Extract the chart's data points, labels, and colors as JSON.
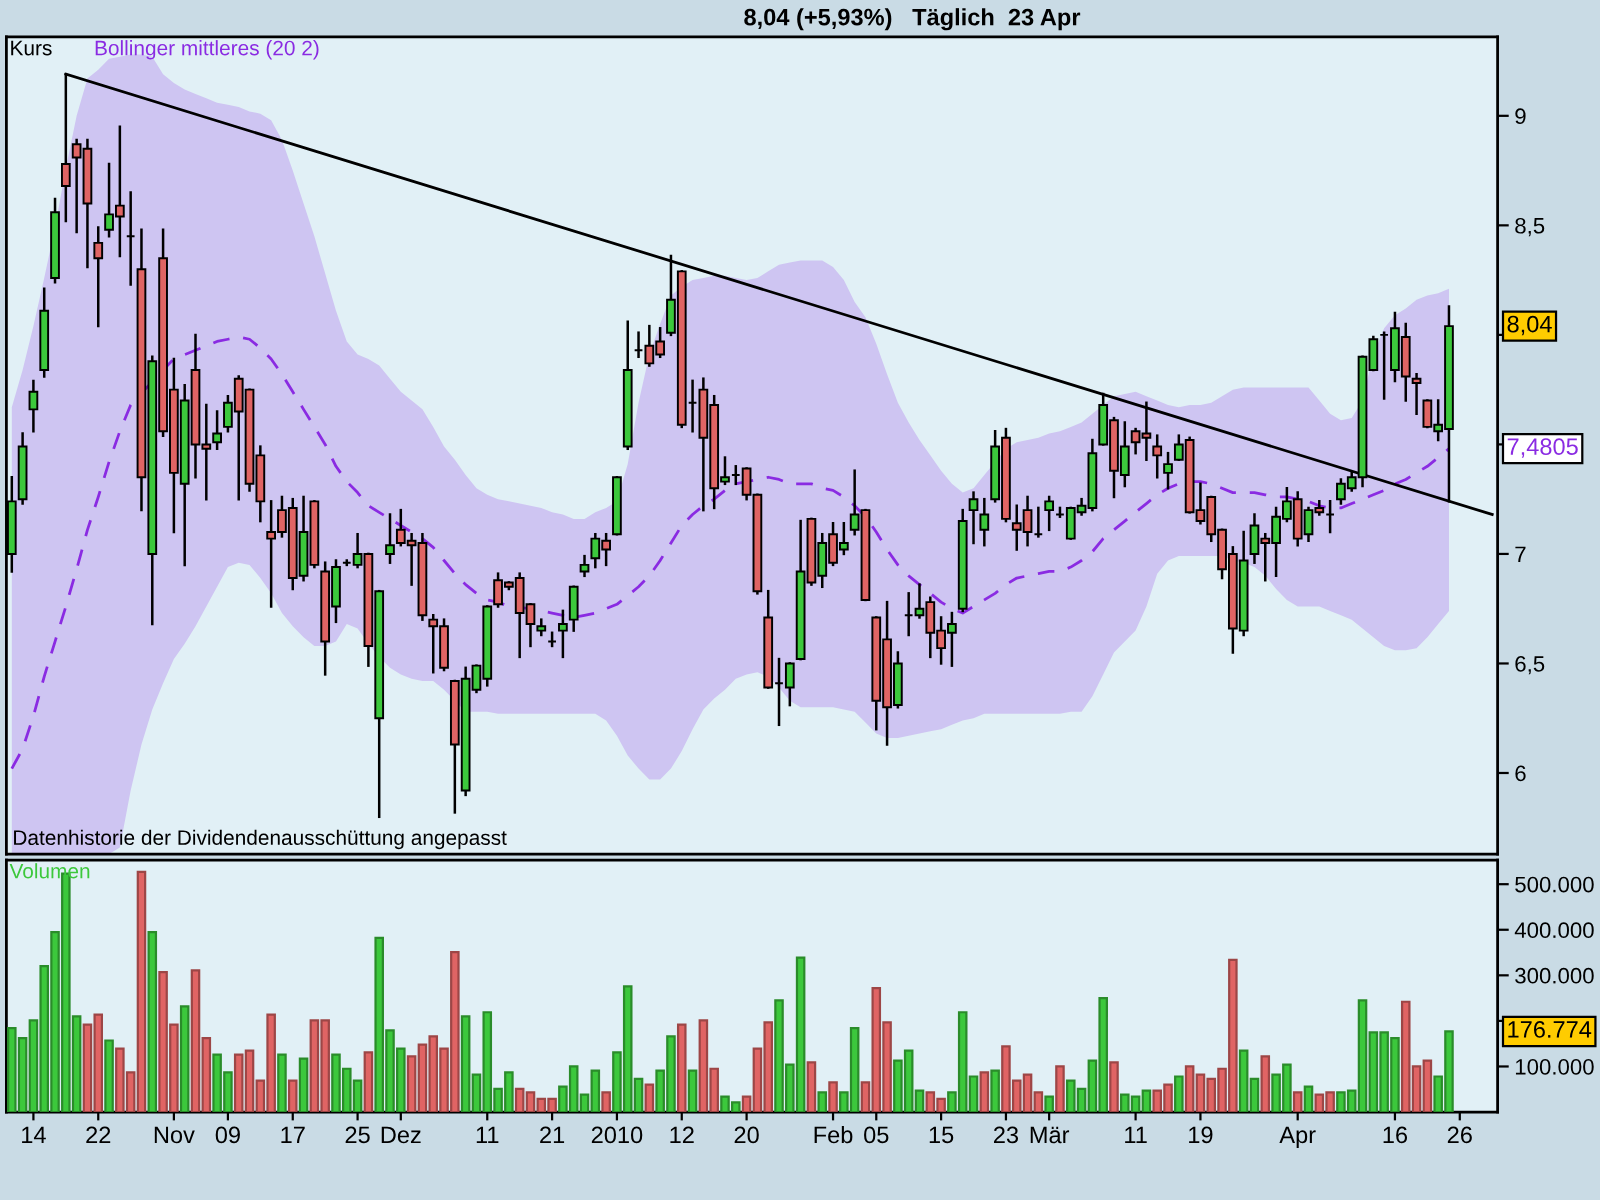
{
  "chart_data": [
    {
      "type": "candlestick",
      "title": "8,04 (+5,93%)   Täglich  23 Apr",
      "categories": [
        null,
        null,
        null,
        null,
        null,
        null,
        null,
        null,
        null,
        null,
        null,
        null,
        null,
        null,
        null,
        null,
        null,
        null,
        null,
        null,
        null,
        null,
        null,
        null,
        null,
        null,
        null,
        null,
        null,
        null,
        null,
        null,
        null,
        null,
        null,
        null,
        null,
        null,
        null,
        null,
        null,
        null,
        null,
        null,
        null,
        null,
        null,
        null,
        null,
        null,
        null,
        null,
        null,
        null,
        null,
        null,
        null,
        null,
        null,
        null,
        null,
        null,
        null,
        null,
        null,
        null,
        null,
        null,
        null,
        null,
        null,
        null,
        null,
        null,
        null,
        null,
        null,
        null,
        null,
        null,
        null,
        null,
        null,
        null,
        null,
        null,
        null,
        null,
        null,
        null,
        null,
        null,
        null,
        null,
        null,
        null,
        null,
        null,
        null,
        null,
        null,
        null,
        null,
        null,
        null,
        null,
        null,
        null,
        null,
        null,
        null,
        null,
        null,
        null,
        null,
        null,
        null,
        null,
        null,
        null,
        null,
        null,
        null,
        null,
        null,
        null,
        null,
        null,
        null,
        null,
        null,
        null,
        null,
        null,
        null,
        null,
        null,
        null
      ],
      "series": [
        {
          "name": "Kurs",
          "type": "candlestick",
          "color": "#000000",
          "colors": [
            "#3cc83c",
            "#3cc83c",
            "#3cc83c",
            "#3cc83c",
            "#3cc83c",
            "#e06464",
            "#e06464",
            "#e06464",
            "#e06464",
            "#3cc83c",
            "#e06464",
            "#000000",
            "#e06464",
            "#3cc83c",
            "#e06464",
            "#e06464",
            "#3cc83c",
            "#e06464",
            "#e06464",
            "#3cc83c",
            "#3cc83c",
            "#e06464",
            "#e06464",
            "#e06464",
            "#e06464",
            "#e06464",
            "#e06464",
            "#3cc83c",
            "#e06464",
            "#e06464",
            "#3cc83c",
            "#000000",
            "#3cc83c",
            "#e06464",
            "#3cc83c",
            "#3cc83c",
            "#e06464",
            "#e06464",
            "#e06464",
            "#e06464",
            "#e06464",
            "#e06464",
            "#3cc83c",
            "#3cc83c",
            "#3cc83c",
            "#e06464",
            "#e06464",
            "#e06464",
            "#e06464",
            "#3cc83c",
            "#000000",
            "#3cc83c",
            "#3cc83c",
            "#3cc83c",
            "#3cc83c",
            "#e06464",
            "#3cc83c",
            "#3cc83c",
            "#000000",
            "#e06464",
            "#e06464",
            "#3cc83c",
            "#e06464",
            "#000000",
            "#e06464",
            "#e06464",
            "#3cc83c",
            "#000000",
            "#e06464",
            "#e06464",
            "#e06464",
            "#000000",
            "#3cc83c",
            "#3cc83c",
            "#e06464",
            "#3cc83c",
            "#e06464",
            "#3cc83c",
            "#3cc83c",
            "#e06464",
            "#e06464",
            "#e06464",
            "#3cc83c",
            "#000000",
            "#3cc83c",
            "#e06464",
            "#e06464",
            "#3cc83c",
            "#3cc83c",
            "#3cc83c",
            "#3cc83c",
            "#3cc83c",
            "#e06464",
            "#e06464",
            "#e06464",
            "#000000",
            "#3cc83c",
            "#000000",
            "#3cc83c",
            "#3cc83c",
            "#3cc83c",
            "#3cc83c",
            "#e06464",
            "#3cc83c",
            "#e06464",
            "#e06464",
            "#e06464",
            "#3cc83c",
            "#3cc83c",
            "#e06464",
            "#e06464",
            "#e06464",
            "#e06464",
            "#e06464",
            "#3cc83c",
            "#3cc83c",
            "#e06464",
            "#3cc83c",
            "#3cc83c",
            "#e06464",
            "#3cc83c",
            "#e06464",
            "#000000",
            "#3cc83c",
            "#3cc83c",
            "#3cc83c",
            "#3cc83c",
            "#000000",
            "#3cc83c",
            "#e06464",
            "#e06464",
            "#e06464",
            "#3cc83c",
            "#3cc83c",
            null,
            null,
            null,
            null
          ],
          "ohlc": [
            [
              7.0,
              7.35,
              6.92,
              7.24
            ],
            [
              7.25,
              7.55,
              7.23,
              7.49
            ],
            [
              7.66,
              7.79,
              7.56,
              7.74
            ],
            [
              7.84,
              8.21,
              7.81,
              8.11
            ],
            [
              8.26,
              8.62,
              8.24,
              8.56
            ],
            [
              8.78,
              9.19,
              8.52,
              8.68
            ],
            [
              8.87,
              8.89,
              8.47,
              8.81
            ],
            [
              8.85,
              8.89,
              8.31,
              8.6
            ],
            [
              8.42,
              8.49,
              8.04,
              8.35
            ],
            [
              8.48,
              8.78,
              8.45,
              8.55
            ],
            [
              8.59,
              8.95,
              8.36,
              8.54
            ],
            [
              8.45,
              8.65,
              8.23,
              8.45
            ],
            [
              8.3,
              8.48,
              7.2,
              7.35
            ],
            [
              7.0,
              7.9,
              6.68,
              7.88
            ],
            [
              8.35,
              8.48,
              7.54,
              7.56
            ],
            [
              7.75,
              7.89,
              7.1,
              7.37
            ],
            [
              7.32,
              7.77,
              6.95,
              7.7
            ],
            [
              7.84,
              8.0,
              7.35,
              7.5
            ],
            [
              7.5,
              7.68,
              7.25,
              7.48
            ],
            [
              7.51,
              7.65,
              7.48,
              7.55
            ],
            [
              7.58,
              7.72,
              7.56,
              7.69
            ],
            [
              7.8,
              7.81,
              7.25,
              7.65
            ],
            [
              7.75,
              7.75,
              7.29,
              7.32
            ],
            [
              7.45,
              7.49,
              7.15,
              7.24
            ],
            [
              7.1,
              7.24,
              6.76,
              7.07
            ],
            [
              7.2,
              7.26,
              7.08,
              7.1
            ],
            [
              7.21,
              7.25,
              6.84,
              6.89
            ],
            [
              6.9,
              7.26,
              6.88,
              7.1
            ],
            [
              7.24,
              7.24,
              6.94,
              6.95
            ],
            [
              6.92,
              6.96,
              6.45,
              6.6
            ],
            [
              6.76,
              6.97,
              6.69,
              6.94
            ],
            [
              6.96,
              6.97,
              6.95,
              6.96
            ],
            [
              6.95,
              7.09,
              6.94,
              7.0
            ],
            [
              7.0,
              7.0,
              6.49,
              6.58
            ],
            [
              6.25,
              6.83,
              5.8,
              6.83
            ],
            [
              7.0,
              7.18,
              6.96,
              7.04
            ],
            [
              7.11,
              7.2,
              7.04,
              7.05
            ],
            [
              7.06,
              7.09,
              6.86,
              7.04
            ],
            [
              7.05,
              7.09,
              6.7,
              6.72
            ],
            [
              6.7,
              6.72,
              6.46,
              6.67
            ],
            [
              6.67,
              6.7,
              6.47,
              6.48
            ],
            [
              6.42,
              6.42,
              5.82,
              6.13
            ],
            [
              5.92,
              6.48,
              5.9,
              6.43
            ],
            [
              6.38,
              6.49,
              6.37,
              6.49
            ],
            [
              6.43,
              6.76,
              6.4,
              6.76
            ],
            [
              6.88,
              6.91,
              6.76,
              6.77
            ],
            [
              6.87,
              6.87,
              6.84,
              6.85
            ],
            [
              6.89,
              6.91,
              6.53,
              6.73
            ],
            [
              6.77,
              6.77,
              6.58,
              6.68
            ],
            [
              6.65,
              6.7,
              6.63,
              6.67
            ],
            [
              6.6,
              6.64,
              6.58,
              6.6
            ],
            [
              6.65,
              6.74,
              6.53,
              6.68
            ],
            [
              6.7,
              6.85,
              6.65,
              6.85
            ],
            [
              6.92,
              6.99,
              6.9,
              6.95
            ],
            [
              6.98,
              7.09,
              6.94,
              7.07
            ],
            [
              7.06,
              7.09,
              6.95,
              7.02
            ],
            [
              7.09,
              7.35,
              7.09,
              7.35
            ],
            [
              7.49,
              8.06,
              7.48,
              7.84
            ],
            [
              7.93,
              8.01,
              7.9,
              7.93
            ],
            [
              7.95,
              8.04,
              7.86,
              7.87
            ],
            [
              7.97,
              8.03,
              7.9,
              7.91
            ],
            [
              8.01,
              8.36,
              8.0,
              8.16
            ],
            [
              8.29,
              8.29,
              7.58,
              7.59
            ],
            [
              7.69,
              7.79,
              7.56,
              7.69
            ],
            [
              7.75,
              7.8,
              7.2,
              7.53
            ],
            [
              7.68,
              7.72,
              7.21,
              7.3
            ],
            [
              7.33,
              7.44,
              7.32,
              7.35
            ],
            [
              7.36,
              7.4,
              7.32,
              7.36
            ],
            [
              7.39,
              7.39,
              7.25,
              7.27
            ],
            [
              7.27,
              7.27,
              6.82,
              6.83
            ],
            [
              6.71,
              6.83,
              6.39,
              6.39
            ],
            [
              6.41,
              6.52,
              6.22,
              6.41
            ],
            [
              6.39,
              6.5,
              6.31,
              6.5
            ],
            [
              6.52,
              7.15,
              6.52,
              6.92
            ],
            [
              7.16,
              7.16,
              6.86,
              6.87
            ],
            [
              6.9,
              7.09,
              6.85,
              7.05
            ],
            [
              7.09,
              7.14,
              6.95,
              6.96
            ],
            [
              7.02,
              7.14,
              7.0,
              7.05
            ],
            [
              7.11,
              7.38,
              7.09,
              7.18
            ],
            [
              7.2,
              7.2,
              6.79,
              6.79
            ],
            [
              6.71,
              6.71,
              6.2,
              6.33
            ],
            [
              6.61,
              6.78,
              6.13,
              6.3
            ],
            [
              6.31,
              6.55,
              6.3,
              6.5
            ],
            [
              6.72,
              6.82,
              6.63,
              6.72
            ],
            [
              6.72,
              6.86,
              6.71,
              6.75
            ],
            [
              6.78,
              6.8,
              6.53,
              6.64
            ],
            [
              6.65,
              6.71,
              6.5,
              6.57
            ],
            [
              6.64,
              6.73,
              6.49,
              6.68
            ],
            [
              6.75,
              7.2,
              6.74,
              7.15
            ],
            [
              7.2,
              7.28,
              7.05,
              7.25
            ],
            [
              7.11,
              7.25,
              7.04,
              7.18
            ],
            [
              7.25,
              7.56,
              7.24,
              7.49
            ],
            [
              7.53,
              7.57,
              7.15,
              7.16
            ],
            [
              7.14,
              7.22,
              7.02,
              7.11
            ],
            [
              7.2,
              7.26,
              7.04,
              7.1
            ],
            [
              7.09,
              7.21,
              7.08,
              7.09
            ],
            [
              7.2,
              7.26,
              7.11,
              7.24
            ],
            [
              7.18,
              7.21,
              7.17,
              7.18
            ],
            [
              7.07,
              7.21,
              7.07,
              7.21
            ],
            [
              7.19,
              7.25,
              7.18,
              7.22
            ],
            [
              7.21,
              7.52,
              7.2,
              7.46
            ],
            [
              7.5,
              7.73,
              7.5,
              7.68
            ],
            [
              7.61,
              7.62,
              7.26,
              7.38
            ],
            [
              7.36,
              7.6,
              7.31,
              7.49
            ],
            [
              7.56,
              7.57,
              7.46,
              7.51
            ],
            [
              7.55,
              7.69,
              7.43,
              7.53
            ],
            [
              7.49,
              7.54,
              7.35,
              7.45
            ],
            [
              7.37,
              7.46,
              7.3,
              7.41
            ],
            [
              7.43,
              7.54,
              7.43,
              7.5
            ],
            [
              7.52,
              7.53,
              7.19,
              7.19
            ],
            [
              7.2,
              7.32,
              7.14,
              7.15
            ],
            [
              7.26,
              7.26,
              7.06,
              7.09
            ],
            [
              7.11,
              7.11,
              6.89,
              6.93
            ],
            [
              7.0,
              7.03,
              6.55,
              6.66
            ],
            [
              6.65,
              7.1,
              6.63,
              6.97
            ],
            [
              7.0,
              7.18,
              6.96,
              7.13
            ],
            [
              7.07,
              7.09,
              6.88,
              7.05
            ],
            [
              7.05,
              7.21,
              6.9,
              7.17
            ],
            [
              7.16,
              7.3,
              7.15,
              7.24
            ],
            [
              7.25,
              7.28,
              7.04,
              7.07
            ],
            [
              7.09,
              7.21,
              7.06,
              7.2
            ],
            [
              7.21,
              7.24,
              7.18,
              7.19
            ],
            [
              7.18,
              7.24,
              7.1,
              7.18
            ],
            [
              7.25,
              7.34,
              7.23,
              7.32
            ],
            [
              7.3,
              7.37,
              7.29,
              7.35
            ],
            [
              7.35,
              7.9,
              7.31,
              7.9
            ],
            [
              7.84,
              7.99,
              7.84,
              7.98
            ],
            [
              8.0,
              8.01,
              7.71,
              8.0
            ],
            [
              7.84,
              8.1,
              7.79,
              8.03
            ],
            [
              7.99,
              8.05,
              7.7,
              7.81
            ],
            [
              7.8,
              7.82,
              7.64,
              7.78
            ],
            [
              7.7,
              7.7,
              7.58,
              7.58
            ],
            [
              7.56,
              7.7,
              7.52,
              7.59
            ],
            [
              7.57,
              8.13,
              7.24,
              8.04
            ],
            null,
            null,
            null,
            null
          ]
        },
        {
          "name": "Bollinger mittleres (20 2)",
          "type": "line",
          "color": "#8a2be2",
          "line_style": "dashed",
          "values": [
            6.02,
            6.11,
            6.26,
            6.44,
            6.6,
            6.76,
            6.93,
            7.11,
            7.26,
            7.42,
            7.56,
            7.68,
            null,
            null,
            7.84,
            7.89,
            7.91,
            7.93,
            7.95,
            7.97,
            7.98,
            7.99,
            7.98,
            7.94,
            7.89,
            7.82,
            7.74,
            7.66,
            7.58,
            7.5,
            7.4,
            7.33,
            7.28,
            7.22,
            7.19,
            7.16,
            7.13,
            7.1,
            7.07,
            7.03,
            6.97,
            6.91,
            6.86,
            6.82,
            6.79,
            6.78,
            6.76,
            null,
            6.75,
            6.74,
            6.73,
            6.72,
            6.71,
            6.72,
            6.73,
            6.75,
            6.77,
            6.81,
            6.85,
            6.9,
            6.97,
            7.05,
            7.13,
            7.18,
            7.22,
            7.25,
            7.29,
            7.32,
            7.33,
            7.34,
            7.35,
            7.34,
            7.32,
            7.32,
            7.32,
            7.3,
            7.29,
            7.26,
            7.22,
            7.17,
            7.1,
            7.02,
            6.95,
            6.9,
            6.86,
            6.82,
            6.78,
            6.75,
            6.73,
            6.76,
            6.79,
            6.82,
            6.86,
            6.89,
            6.9,
            6.91,
            6.92,
            6.92,
            6.94,
            6.97,
            7.01,
            7.07,
            7.11,
            7.15,
            7.19,
            7.23,
            7.27,
            7.3,
            7.32,
            7.33,
            7.33,
            7.32,
            7.3,
            7.28,
            7.28,
            7.28,
            7.27,
            7.26,
            7.26,
            7.25,
            7.24,
            7.22,
            7.21,
            7.21,
            7.23,
            7.25,
            7.27,
            7.29,
            7.32,
            7.34,
            7.37,
            7.4,
            7.44,
            7.4805,
            null,
            null,
            null,
            null
          ],
          "lower": [
            5.63,
            5.63,
            5.63,
            5.63,
            5.63,
            5.63,
            5.63,
            5.63,
            5.63,
            5.63,
            5.66,
            5.92,
            6.13,
            6.29,
            6.41,
            6.52,
            6.59,
            6.67,
            6.76,
            6.85,
            6.94,
            6.96,
            6.95,
            6.89,
            6.82,
            6.73,
            6.67,
            6.62,
            6.58,
            6.58,
            6.6,
            6.68,
            6.66,
            6.59,
            6.53,
            6.48,
            6.45,
            6.43,
            6.42,
            6.42,
            6.38,
            6.33,
            6.28,
            6.28,
            6.28,
            6.27,
            6.27,
            6.27,
            6.27,
            6.27,
            6.27,
            6.27,
            6.27,
            6.27,
            6.27,
            6.24,
            6.17,
            6.08,
            6.02,
            5.97,
            5.97,
            6.02,
            6.1,
            6.2,
            6.29,
            6.34,
            6.38,
            6.43,
            6.45,
            6.46,
            6.44,
            6.39,
            6.33,
            6.3,
            6.3,
            6.3,
            6.3,
            6.29,
            6.28,
            6.23,
            6.18,
            6.16,
            6.16,
            6.17,
            6.18,
            6.19,
            6.2,
            6.22,
            6.24,
            6.25,
            6.27,
            6.27,
            6.27,
            6.27,
            6.27,
            6.27,
            6.27,
            6.27,
            6.28,
            6.28,
            6.35,
            6.45,
            6.55,
            6.6,
            6.65,
            6.76,
            6.91,
            6.97,
            6.99,
            6.99,
            6.99,
            6.99,
            6.99,
            6.97,
            6.96,
            6.94,
            6.9,
            6.84,
            6.79,
            6.76,
            6.76,
            6.76,
            6.74,
            6.72,
            6.7,
            6.66,
            6.62,
            6.58,
            6.56,
            6.56,
            6.57,
            6.62,
            6.68,
            6.74,
            null,
            null,
            null,
            null
          ],
          "upper": [
            7.67,
            7.84,
            8.04,
            8.26,
            8.49,
            8.76,
            9.0,
            9.17,
            9.21,
            9.26,
            9.27,
            9.28,
            9.28,
            9.27,
            9.19,
            9.15,
            9.12,
            9.1,
            9.08,
            9.06,
            9.05,
            9.04,
            9.02,
            9.01,
            8.98,
            8.89,
            8.75,
            8.6,
            8.45,
            8.28,
            8.11,
            7.97,
            7.91,
            7.89,
            7.86,
            7.8,
            7.74,
            7.7,
            7.66,
            7.58,
            7.49,
            7.43,
            7.36,
            7.3,
            7.27,
            7.25,
            7.24,
            7.23,
            7.22,
            7.21,
            7.19,
            7.18,
            7.16,
            7.16,
            7.19,
            7.21,
            7.24,
            7.41,
            7.69,
            7.91,
            8.05,
            8.18,
            8.22,
            8.25,
            8.26,
            8.27,
            8.27,
            8.26,
            8.25,
            8.26,
            8.29,
            8.32,
            8.33,
            8.34,
            8.34,
            8.34,
            8.31,
            8.25,
            8.15,
            8.08,
            7.96,
            7.82,
            7.69,
            7.6,
            7.52,
            7.45,
            7.38,
            7.32,
            7.28,
            7.3,
            7.36,
            7.42,
            7.48,
            7.51,
            7.52,
            7.53,
            7.55,
            7.56,
            7.58,
            7.6,
            7.64,
            7.68,
            7.72,
            7.73,
            7.74,
            7.72,
            7.7,
            7.68,
            7.67,
            7.68,
            7.68,
            7.69,
            7.72,
            7.75,
            7.76,
            7.76,
            7.76,
            7.76,
            7.76,
            7.76,
            7.76,
            7.7,
            7.64,
            7.61,
            7.62,
            7.7,
            7.91,
            8.03,
            8.09,
            8.12,
            8.16,
            8.18,
            8.19,
            8.21,
            null,
            null,
            null,
            null
          ]
        },
        {
          "type": "line",
          "color": "#000000",
          "values": [
            null,
            null,
            null,
            null,
            null,
            9.19,
            null,
            null,
            null,
            null,
            null,
            null,
            null,
            null,
            null,
            null,
            null,
            null,
            null,
            null,
            null,
            null,
            null,
            null,
            null,
            null,
            null,
            null,
            null,
            null,
            null,
            null,
            null,
            null,
            null,
            null,
            null,
            null,
            null,
            null,
            null,
            null,
            null,
            null,
            null,
            null,
            null,
            null,
            null,
            null,
            null,
            null,
            null,
            null,
            null,
            null,
            null,
            null,
            null,
            null,
            null,
            null,
            null,
            null,
            null,
            null,
            null,
            null,
            null,
            null,
            null,
            null,
            null,
            null,
            null,
            null,
            null,
            null,
            null,
            null,
            null,
            null,
            null,
            null,
            null,
            null,
            null,
            null,
            null,
            null,
            null,
            null,
            null,
            null,
            null,
            null,
            null,
            null,
            null,
            null,
            null,
            null,
            null,
            null,
            null,
            null,
            null,
            null,
            null,
            null,
            null,
            null,
            null,
            null,
            null,
            null,
            null,
            null,
            null,
            null,
            null,
            null,
            null,
            null,
            null,
            null,
            null,
            null,
            null,
            null,
            null,
            null,
            null,
            null,
            null,
            null,
            null,
            7.18
          ]
        }
      ],
      "ylim": [
        5.63,
        9.36
      ],
      "yticks": [
        6,
        {
          "value": 6.5,
          "label": "6,5"
        },
        7,
        {
          "value": 7.5,
          "label": null
        },
        {
          "value": 8,
          "label": null
        },
        {
          "value": 8.5,
          "label": "8,5"
        },
        9
      ],
      "tick_labels": "y",
      "legend": "top left",
      "annotations": [
        "Datenhistorie der Dividendenausschüttung angepasst",
        {
          "text": "8,04",
          "y": 8.04
        },
        {
          "text": "7,4805",
          "y": 7.4805
        }
      ]
    },
    {
      "type": "bar",
      "categories": [
        null,
        null,
        "14",
        null,
        null,
        null,
        null,
        null,
        "22",
        null,
        null,
        null,
        null,
        null,
        null,
        "Nov",
        null,
        null,
        null,
        null,
        "09",
        null,
        null,
        null,
        null,
        null,
        "17",
        null,
        null,
        null,
        null,
        null,
        "25",
        null,
        null,
        null,
        "Dez",
        null,
        null,
        null,
        null,
        null,
        null,
        null,
        "11",
        null,
        null,
        null,
        null,
        null,
        "21",
        null,
        null,
        null,
        null,
        null,
        "2010",
        null,
        null,
        null,
        null,
        null,
        "12",
        null,
        null,
        null,
        null,
        null,
        "20",
        null,
        null,
        null,
        null,
        null,
        null,
        null,
        "Feb",
        null,
        null,
        null,
        "05",
        null,
        null,
        null,
        null,
        null,
        "15",
        null,
        null,
        null,
        null,
        null,
        "23",
        null,
        null,
        null,
        "Mär",
        null,
        null,
        null,
        null,
        null,
        null,
        null,
        "11",
        null,
        null,
        null,
        null,
        null,
        "19",
        null,
        null,
        null,
        null,
        null,
        null,
        null,
        null,
        "Apr",
        null,
        null,
        null,
        null,
        null,
        null,
        null,
        null,
        "16",
        null,
        null,
        null,
        null,
        null,
        "26",
        null,
        null,
        null
      ],
      "series": [
        {
          "name": "Volumen",
          "color": "#3cc83c",
          "colors": [
            "#3cc83c",
            "#3cc83c",
            "#3cc83c",
            "#3cc83c",
            "#3cc83c",
            "#3cc83c",
            "#3cc83c",
            "#e06464",
            "#e06464",
            "#3cc83c",
            "#e06464",
            "#e06464",
            "#e06464",
            "#3cc83c",
            "#e06464",
            "#e06464",
            "#3cc83c",
            "#e06464",
            "#e06464",
            "#3cc83c",
            "#3cc83c",
            "#e06464",
            "#e06464",
            "#e06464",
            "#e06464",
            "#3cc83c",
            "#e06464",
            "#3cc83c",
            "#e06464",
            "#e06464",
            "#3cc83c",
            "#3cc83c",
            "#3cc83c",
            "#e06464",
            "#3cc83c",
            "#3cc83c",
            "#3cc83c",
            "#e06464",
            "#e06464",
            "#e06464",
            "#e06464",
            "#e06464",
            "#3cc83c",
            "#3cc83c",
            "#3cc83c",
            "#3cc83c",
            "#3cc83c",
            "#e06464",
            "#e06464",
            "#e06464",
            "#e06464",
            "#3cc83c",
            "#3cc83c",
            "#3cc83c",
            "#3cc83c",
            "#e06464",
            "#3cc83c",
            "#3cc83c",
            "#3cc83c",
            "#e06464",
            "#3cc83c",
            "#3cc83c",
            "#e06464",
            "#3cc83c",
            "#e06464",
            "#e06464",
            "#3cc83c",
            "#3cc83c",
            "#e06464",
            "#e06464",
            "#e06464",
            "#3cc83c",
            "#3cc83c",
            "#3cc83c",
            "#e06464",
            "#3cc83c",
            "#e06464",
            "#3cc83c",
            "#3cc83c",
            "#e06464",
            "#e06464",
            "#e06464",
            "#3cc83c",
            "#3cc83c",
            "#3cc83c",
            "#e06464",
            "#e06464",
            "#3cc83c",
            "#3cc83c",
            "#3cc83c",
            "#e06464",
            "#3cc83c",
            "#e06464",
            "#e06464",
            "#e06464",
            "#e06464",
            "#3cc83c",
            "#e06464",
            "#3cc83c",
            "#3cc83c",
            "#3cc83c",
            "#3cc83c",
            "#e06464",
            "#3cc83c",
            "#3cc83c",
            "#3cc83c",
            "#e06464",
            "#e06464",
            "#3cc83c",
            "#e06464",
            "#e06464",
            "#e06464",
            "#e06464",
            "#e06464",
            "#3cc83c",
            "#3cc83c",
            "#e06464",
            "#3cc83c",
            "#3cc83c",
            "#e06464",
            "#3cc83c",
            "#e06464",
            "#e06464",
            "#3cc83c",
            "#3cc83c",
            "#3cc83c",
            "#3cc83c",
            "#3cc83c",
            "#3cc83c",
            "#e06464",
            "#e06464",
            "#e06464",
            "#3cc83c",
            "#3cc83c",
            null,
            null,
            null,
            null
          ],
          "values": [
            184000,
            162000,
            201000,
            320000,
            395000,
            523000,
            210000,
            192000,
            214000,
            157000,
            139000,
            87000,
            527000,
            395000,
            307000,
            192000,
            232000,
            311000,
            162000,
            126000,
            87000,
            126000,
            135000,
            69000,
            214000,
            126000,
            69000,
            117000,
            201000,
            201000,
            126000,
            95000,
            69000,
            131000,
            382000,
            179000,
            139000,
            122000,
            148000,
            166000,
            139000,
            351000,
            210000,
            82000,
            219000,
            51000,
            87000,
            51000,
            43000,
            29000,
            29000,
            56000,
            100000,
            38000,
            91000,
            43000,
            131000,
            276000,
            73000,
            60000,
            91000,
            166000,
            192000,
            91000,
            201000,
            95000,
            34000,
            21000,
            34000,
            139000,
            197000,
            245000,
            104000,
            339000,
            109000,
            43000,
            65000,
            43000,
            184000,
            65000,
            272000,
            197000,
            113000,
            135000,
            47000,
            43000,
            29000,
            43000,
            219000,
            78000,
            87000,
            91000,
            144000,
            69000,
            82000,
            43000,
            34000,
            100000,
            69000,
            51000,
            113000,
            250000,
            109000,
            38000,
            34000,
            47000,
            47000,
            60000,
            78000,
            100000,
            82000,
            73000,
            95000,
            334000,
            135000,
            73000,
            122000,
            82000,
            104000,
            43000,
            56000,
            38000,
            43000,
            43000,
            47000,
            245000,
            175000,
            175000,
            162000,
            242000,
            100000,
            113000,
            78000,
            176774,
            null,
            null,
            null,
            null
          ]
        }
      ],
      "ylim": [
        0,
        553000
      ],
      "yticks": [
        {
          "value": 100000,
          "label": "100.000"
        },
        {
          "value": 200000,
          "label": null
        },
        {
          "value": 300000,
          "label": "300.000"
        },
        {
          "value": 400000,
          "label": "400.000"
        },
        {
          "value": 500000,
          "label": "500.000"
        }
      ],
      "legend": "top left",
      "annotations": [
        "176.774"
      ]
    }
  ]
}
